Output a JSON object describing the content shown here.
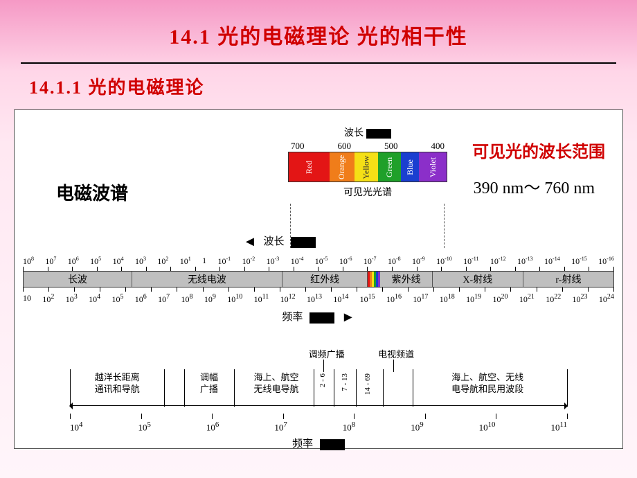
{
  "title": "14.1  光的电磁理论  光的相干性",
  "subtitle": "14.1.1  光的电磁理论",
  "labels": {
    "em_spectrum": "电磁波谱",
    "visible_range_title": "可见光的波长范围",
    "visible_range_value": "390 nm～ 760 nm",
    "wavelength": "波长",
    "visible_spectrum_caption": "可见光光谱",
    "frequency": "频率"
  },
  "visible_spectrum": {
    "ticks": [
      "700",
      "600",
      "500",
      "400"
    ],
    "segments": [
      {
        "label": "Red",
        "color": "#e31515"
      },
      {
        "label": "Orange",
        "color": "#f07d1a"
      },
      {
        "label": "Yellow",
        "color": "#f5e016"
      },
      {
        "label": "Green",
        "color": "#1fa02a"
      },
      {
        "label": "Blue",
        "color": "#1a3fd0"
      },
      {
        "label": "Violet",
        "color": "#8b2fc9"
      }
    ],
    "seg_flex": [
      1.8,
      0.8,
      0.6,
      1.0,
      0.8,
      1.2
    ]
  },
  "main_scale": {
    "wavelength_exp": [
      "8",
      "7",
      "6",
      "5",
      "4",
      "3",
      "2",
      "1",
      "",
      "-1",
      "-2",
      "-3",
      "-4",
      "-5",
      "-6",
      "-7",
      "-8",
      "-9",
      "-10",
      "-11",
      "-12",
      "-13",
      "-14",
      "-15",
      "-16"
    ],
    "bands": [
      {
        "label": "长波",
        "flex": 4.2
      },
      {
        "label": "无线电波",
        "flex": 5.8
      },
      {
        "label": "红外线",
        "flex": 3.3
      },
      {
        "label": "__vis__",
        "flex": 0.35
      },
      {
        "label": "紫外线",
        "flex": 2.0
      },
      {
        "label": "X-射线",
        "flex": 3.5
      },
      {
        "label": "r-射线",
        "flex": 3.5
      }
    ],
    "freq_exp": [
      "",
      "2",
      "3",
      "4",
      "5",
      "6",
      "7",
      "8",
      "9",
      "10",
      "11",
      "12",
      "13",
      "14",
      "15",
      "16",
      "17",
      "18",
      "19",
      "20",
      "21",
      "22",
      "23",
      "24"
    ]
  },
  "detail_scale": {
    "upper_labels": [
      {
        "text": "调频广播",
        "left_pct": 48
      },
      {
        "text": "电视频道",
        "left_pct": 62
      }
    ],
    "segments": [
      {
        "label": "越洋长距离\\n通讯和导航",
        "left_pct": 0,
        "width_pct": 19,
        "vertical": false
      },
      {
        "label": "调幅\\n广播",
        "left_pct": 23,
        "width_pct": 10,
        "vertical": false
      },
      {
        "label": "海上、航空\\n无线电导航",
        "left_pct": 34,
        "width_pct": 15,
        "vertical": false
      },
      {
        "label": "2 - 6",
        "left_pct": 50,
        "width_pct": 3,
        "vertical": true
      },
      {
        "label": "7 - 13",
        "left_pct": 54.5,
        "width_pct": 3,
        "vertical": true
      },
      {
        "label": "14 - 69",
        "left_pct": 59,
        "width_pct": 4,
        "vertical": true
      },
      {
        "label": "海上、航空、无线\\n电导航和民用波段",
        "left_pct": 69,
        "width_pct": 30,
        "vertical": false
      }
    ],
    "breaks_pct": [
      0,
      19,
      23,
      33,
      49,
      53,
      57.5,
      63,
      69,
      100
    ],
    "tick_exp": [
      "4",
      "5",
      "6",
      "7",
      "8",
      "9",
      "10",
      "11"
    ]
  },
  "colors": {
    "background_top": "#f599c5",
    "background_bottom": "#fff5fa",
    "title_red": "#d00000",
    "band_gray": "#bfbfbf"
  }
}
